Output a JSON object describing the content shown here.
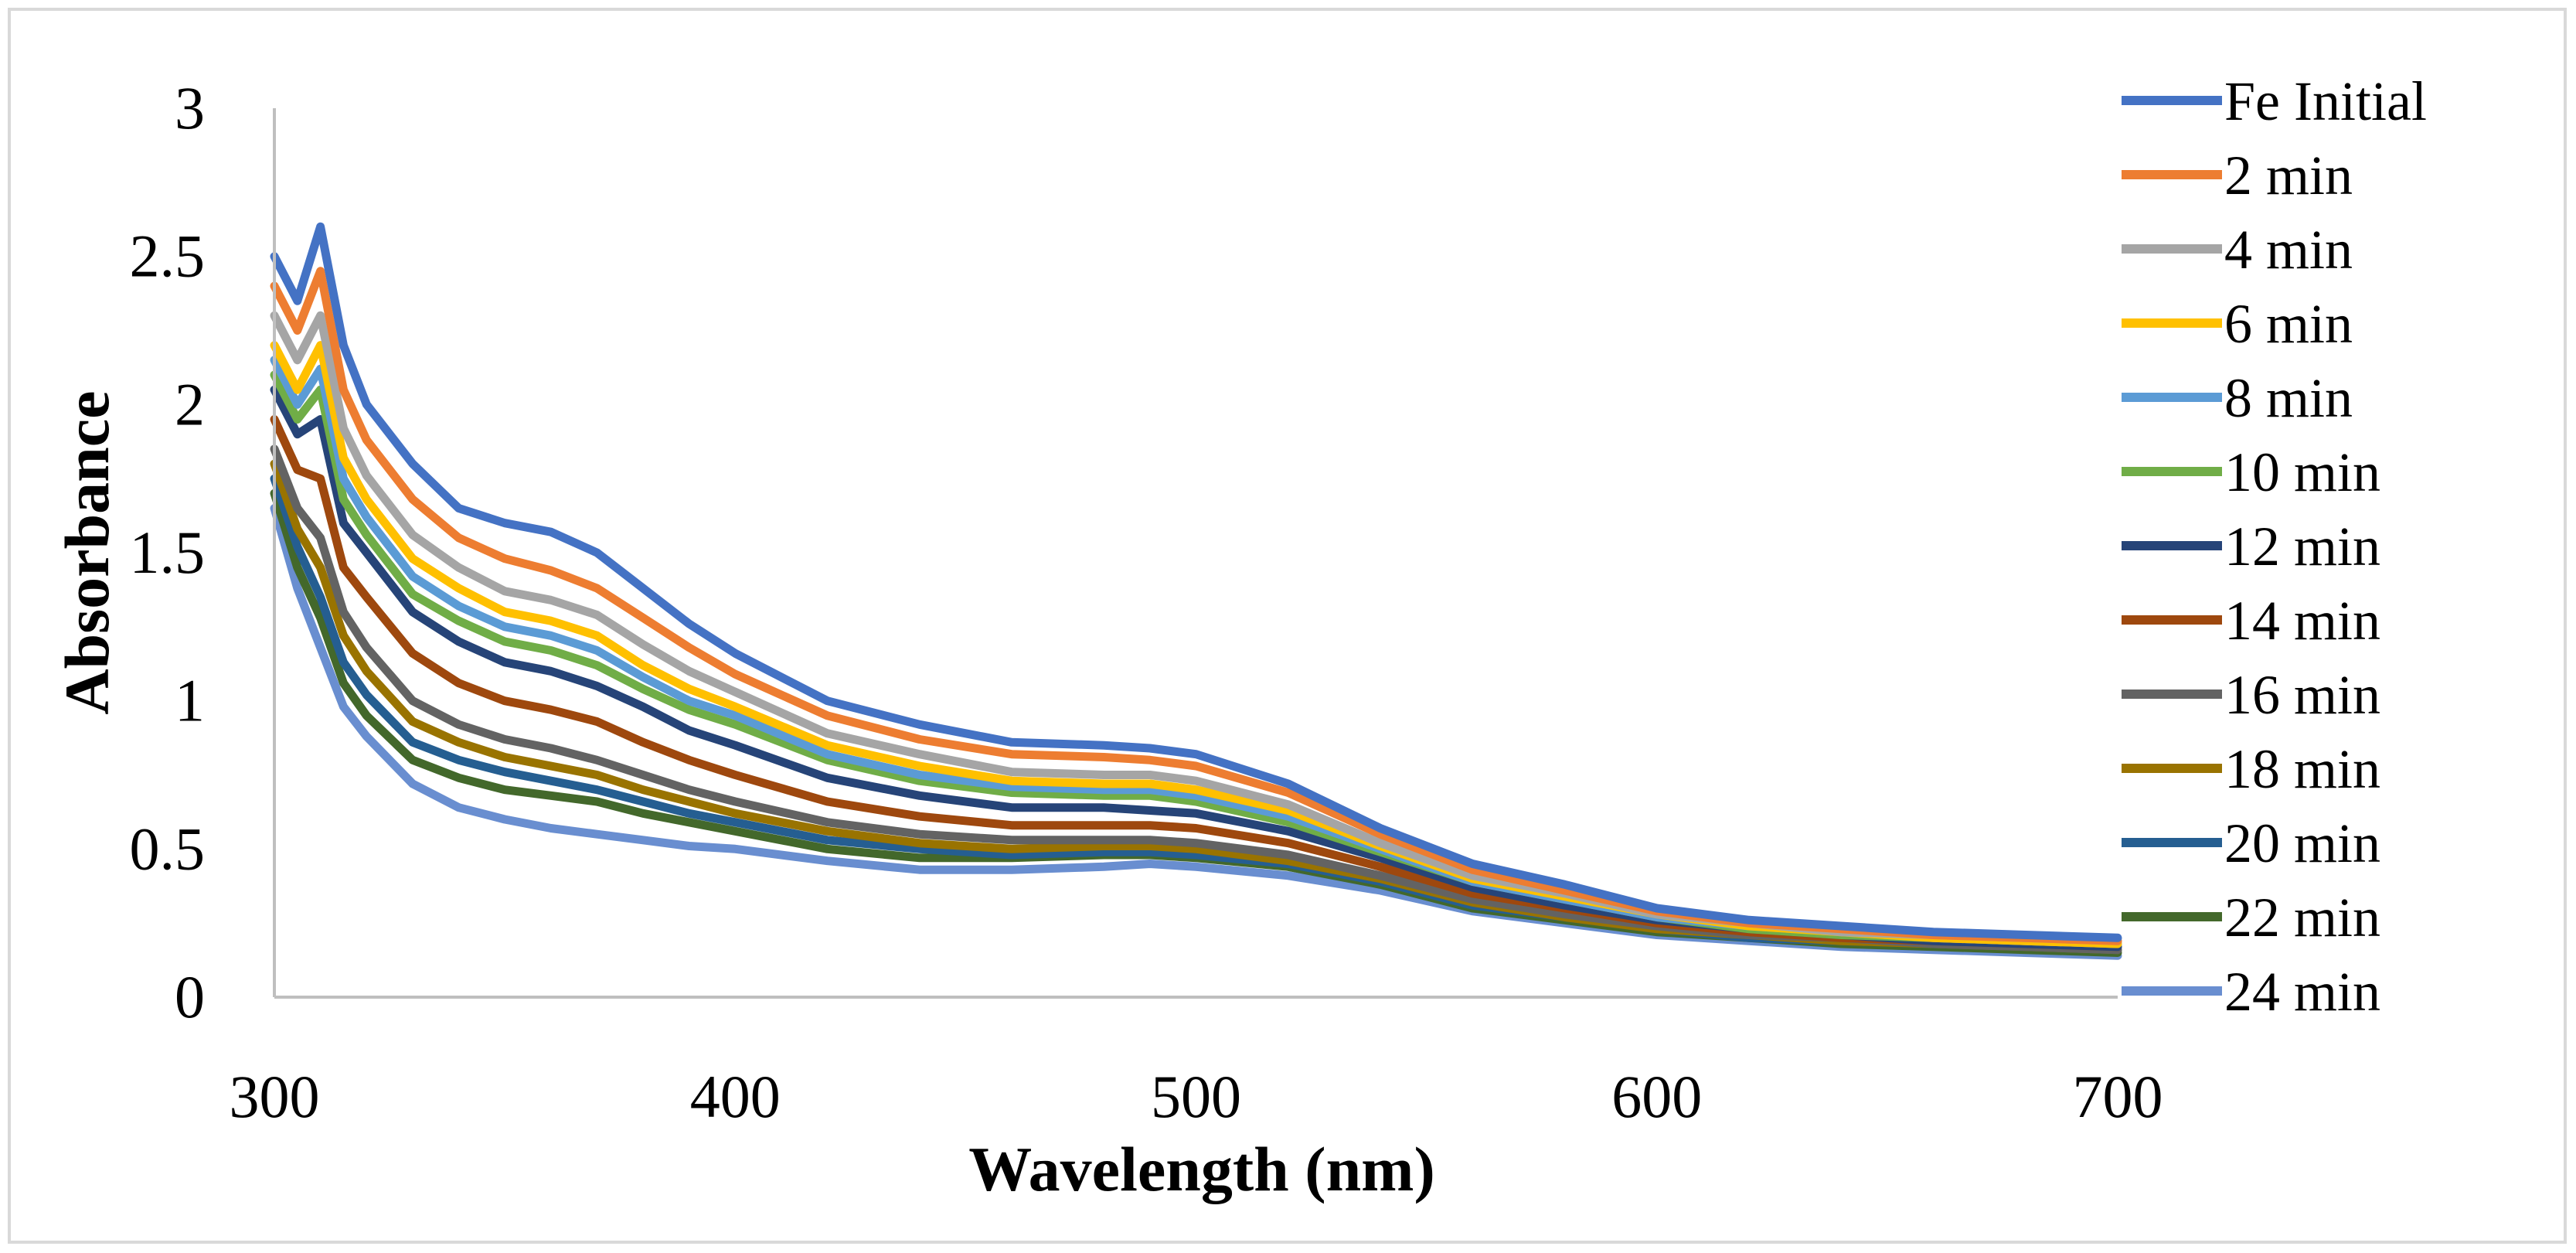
{
  "chart_data": {
    "type": "line",
    "title": "",
    "xlabel": "Wavelength (nm)",
    "ylabel": "Absorbance",
    "xlim": [
      300,
      700
    ],
    "ylim": [
      0,
      3
    ],
    "xticks": [
      "300",
      "400",
      "500",
      "600",
      "700"
    ],
    "yticks": [
      "0",
      "0.5",
      "1",
      "1.5",
      "2",
      "2.5",
      "3"
    ],
    "grid": false,
    "legend_position": "right",
    "x": [
      300,
      305,
      310,
      315,
      320,
      330,
      340,
      350,
      360,
      370,
      380,
      390,
      400,
      420,
      440,
      460,
      480,
      490,
      500,
      520,
      540,
      560,
      580,
      600,
      620,
      640,
      660,
      680,
      700
    ],
    "series": [
      {
        "name": "Fe Initial",
        "color": "#4472c4",
        "values": [
          2.5,
          2.35,
          2.6,
          2.2,
          2.0,
          1.8,
          1.65,
          1.6,
          1.57,
          1.5,
          1.38,
          1.26,
          1.16,
          1.0,
          0.92,
          0.86,
          0.85,
          0.84,
          0.82,
          0.72,
          0.57,
          0.45,
          0.38,
          0.3,
          0.26,
          0.24,
          0.22,
          0.21,
          0.2
        ]
      },
      {
        "name": "2 min",
        "color": "#ed7d31",
        "values": [
          2.4,
          2.25,
          2.45,
          2.05,
          1.88,
          1.68,
          1.55,
          1.48,
          1.44,
          1.38,
          1.28,
          1.18,
          1.09,
          0.95,
          0.87,
          0.82,
          0.81,
          0.8,
          0.78,
          0.69,
          0.55,
          0.43,
          0.36,
          0.29,
          0.25,
          0.23,
          0.21,
          0.2,
          0.19
        ]
      },
      {
        "name": "4 min",
        "color": "#a5a5a5",
        "values": [
          2.3,
          2.15,
          2.3,
          1.92,
          1.76,
          1.56,
          1.45,
          1.37,
          1.34,
          1.29,
          1.19,
          1.1,
          1.03,
          0.89,
          0.82,
          0.76,
          0.75,
          0.75,
          0.73,
          0.65,
          0.52,
          0.41,
          0.35,
          0.28,
          0.25,
          0.22,
          0.21,
          0.2,
          0.19
        ]
      },
      {
        "name": "6 min",
        "color": "#ffc000",
        "values": [
          2.2,
          2.05,
          2.2,
          1.82,
          1.68,
          1.48,
          1.38,
          1.3,
          1.27,
          1.22,
          1.12,
          1.04,
          0.98,
          0.85,
          0.78,
          0.73,
          0.72,
          0.72,
          0.7,
          0.63,
          0.51,
          0.4,
          0.34,
          0.28,
          0.24,
          0.22,
          0.2,
          0.19,
          0.18
        ]
      },
      {
        "name": "8 min",
        "color": "#5b9bd5",
        "values": [
          2.15,
          2.0,
          2.12,
          1.75,
          1.62,
          1.42,
          1.32,
          1.25,
          1.22,
          1.17,
          1.08,
          1.0,
          0.95,
          0.82,
          0.75,
          0.71,
          0.7,
          0.7,
          0.68,
          0.61,
          0.5,
          0.39,
          0.33,
          0.27,
          0.24,
          0.22,
          0.2,
          0.19,
          0.18
        ]
      },
      {
        "name": "10 min",
        "color": "#70ad47",
        "values": [
          2.1,
          1.95,
          2.05,
          1.68,
          1.56,
          1.36,
          1.27,
          1.2,
          1.17,
          1.12,
          1.04,
          0.97,
          0.92,
          0.8,
          0.73,
          0.69,
          0.68,
          0.68,
          0.66,
          0.59,
          0.49,
          0.39,
          0.33,
          0.27,
          0.23,
          0.21,
          0.2,
          0.19,
          0.18
        ]
      },
      {
        "name": "12 min",
        "color": "#264478",
        "values": [
          2.05,
          1.9,
          1.95,
          1.6,
          1.5,
          1.3,
          1.2,
          1.13,
          1.1,
          1.05,
          0.98,
          0.9,
          0.85,
          0.74,
          0.68,
          0.64,
          0.64,
          0.63,
          0.62,
          0.56,
          0.47,
          0.37,
          0.31,
          0.26,
          0.23,
          0.21,
          0.19,
          0.18,
          0.17
        ]
      },
      {
        "name": "14 min",
        "color": "#9e480e",
        "values": [
          1.95,
          1.78,
          1.75,
          1.45,
          1.35,
          1.16,
          1.06,
          1.0,
          0.97,
          0.93,
          0.86,
          0.8,
          0.75,
          0.66,
          0.61,
          0.58,
          0.58,
          0.58,
          0.57,
          0.52,
          0.44,
          0.35,
          0.3,
          0.25,
          0.22,
          0.2,
          0.19,
          0.18,
          0.17
        ]
      },
      {
        "name": "16 min",
        "color": "#636363",
        "values": [
          1.85,
          1.65,
          1.55,
          1.3,
          1.18,
          1.0,
          0.92,
          0.87,
          0.84,
          0.8,
          0.75,
          0.7,
          0.66,
          0.59,
          0.55,
          0.53,
          0.53,
          0.53,
          0.52,
          0.48,
          0.41,
          0.33,
          0.28,
          0.24,
          0.21,
          0.2,
          0.18,
          0.17,
          0.16
        ]
      },
      {
        "name": "18 min",
        "color": "#997300",
        "values": [
          1.8,
          1.58,
          1.45,
          1.22,
          1.1,
          0.93,
          0.86,
          0.81,
          0.78,
          0.75,
          0.7,
          0.66,
          0.62,
          0.56,
          0.52,
          0.5,
          0.51,
          0.51,
          0.5,
          0.46,
          0.4,
          0.32,
          0.27,
          0.23,
          0.21,
          0.19,
          0.18,
          0.17,
          0.16
        ]
      },
      {
        "name": "20 min",
        "color": "#255e91",
        "values": [
          1.75,
          1.52,
          1.35,
          1.13,
          1.02,
          0.86,
          0.8,
          0.76,
          0.73,
          0.7,
          0.66,
          0.62,
          0.59,
          0.53,
          0.5,
          0.48,
          0.49,
          0.49,
          0.48,
          0.45,
          0.39,
          0.31,
          0.27,
          0.23,
          0.2,
          0.19,
          0.18,
          0.17,
          0.16
        ]
      },
      {
        "name": "22 min",
        "color": "#43682b",
        "values": [
          1.7,
          1.45,
          1.28,
          1.06,
          0.95,
          0.8,
          0.74,
          0.7,
          0.68,
          0.66,
          0.62,
          0.59,
          0.56,
          0.5,
          0.47,
          0.47,
          0.48,
          0.48,
          0.47,
          0.44,
          0.38,
          0.3,
          0.26,
          0.22,
          0.2,
          0.18,
          0.17,
          0.16,
          0.15
        ]
      },
      {
        "name": "24 min",
        "color": "#698ed0",
        "values": [
          1.65,
          1.38,
          1.18,
          0.98,
          0.88,
          0.72,
          0.64,
          0.6,
          0.57,
          0.55,
          0.53,
          0.51,
          0.5,
          0.46,
          0.43,
          0.43,
          0.44,
          0.45,
          0.44,
          0.41,
          0.36,
          0.29,
          0.25,
          0.21,
          0.19,
          0.17,
          0.16,
          0.15,
          0.14
        ]
      }
    ]
  }
}
